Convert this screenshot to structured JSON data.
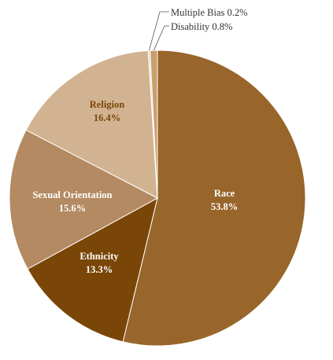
{
  "chart_data": {
    "type": "pie",
    "title": "",
    "slices": [
      {
        "label": "Race",
        "value": 53.8,
        "value_label": "53.8%",
        "color": "#98652a",
        "label_color": "#ffffff",
        "label_placement": "inside"
      },
      {
        "label": "Ethnicity",
        "value": 13.3,
        "value_label": "13.3%",
        "color": "#7a4608",
        "label_color": "#ffffff",
        "label_placement": "inside"
      },
      {
        "label": "Sexual Orientation",
        "value": 15.6,
        "value_label": "15.6%",
        "color": "#b38a61",
        "label_color": "#ffffff",
        "label_placement": "inside"
      },
      {
        "label": "Religion",
        "value": 16.4,
        "value_label": "16.4%",
        "color": "#d2b391",
        "label_color": "#7a4608",
        "label_placement": "inside"
      },
      {
        "label": "Multiple Bias",
        "value": 0.2,
        "value_label": "0.2%",
        "color": "#e7d6c2",
        "label_color": "#333333",
        "label_placement": "callout"
      },
      {
        "label": "Disability",
        "value": 0.8,
        "value_label": "0.8%",
        "color": "#c99f6e",
        "label_color": "#333333",
        "label_placement": "callout"
      }
    ],
    "start_angle_deg": 0,
    "direction": "clockwise",
    "legend": "none",
    "edge_color": "#ffffff"
  }
}
